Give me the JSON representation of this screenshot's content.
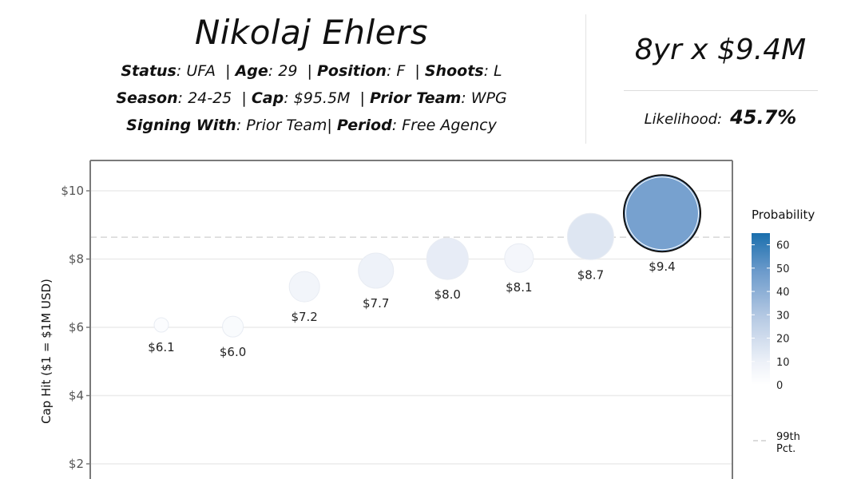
{
  "header": {
    "player_name": "Nikolaj Ehlers",
    "line1": [
      {
        "label": "Status",
        "value": "UFA"
      },
      {
        "label": "Age",
        "value": "29"
      },
      {
        "label": "Position",
        "value": "F"
      },
      {
        "label": "Shoots",
        "value": "L"
      }
    ],
    "line2": [
      {
        "label": "Season",
        "value": "24-25"
      },
      {
        "label": "Cap",
        "value": "$95.5M"
      },
      {
        "label": "Prior Team",
        "value": "WPG"
      }
    ],
    "line3": [
      {
        "label": "Signing With",
        "value": "Prior Team"
      },
      {
        "label": "Period",
        "value": "Free Agency"
      }
    ]
  },
  "summary": {
    "contract": "8yr x $9.4M",
    "likelihood_label": "Likelihood:",
    "likelihood_value": "45.7%"
  },
  "colors": {
    "scale_low": "#f7f9fc",
    "scale_high": "#1a6fad",
    "selected_outline": "#111111",
    "reference_line": "#d6d6d6",
    "gridline": "#ebebeb",
    "panel_border": "#7a7a7a"
  },
  "chart_data": {
    "type": "scatter",
    "title": "",
    "xlabel": "",
    "ylabel": "Cap Hit ($1 = $1M USD)",
    "y_ticks": [
      "$2",
      "$4",
      "$6",
      "$8",
      "$10"
    ],
    "y_tick_values": [
      2,
      4,
      6,
      8,
      10
    ],
    "ylim": [
      1.6,
      10.9
    ],
    "grid": true,
    "points": [
      {
        "label": "$6.1",
        "y": 6.07,
        "probability": 2,
        "radius": 9,
        "selected": false
      },
      {
        "label": "$6.0",
        "y": 6.02,
        "probability": 3,
        "radius": 13,
        "selected": false
      },
      {
        "label": "$7.2",
        "y": 7.19,
        "probability": 7,
        "radius": 19,
        "selected": false
      },
      {
        "label": "$7.7",
        "y": 7.66,
        "probability": 9,
        "radius": 22,
        "selected": false
      },
      {
        "label": "$8.0",
        "y": 8.01,
        "probability": 12,
        "radius": 26,
        "selected": false
      },
      {
        "label": "$8.1",
        "y": 8.03,
        "probability": 6,
        "radius": 18,
        "selected": false
      },
      {
        "label": "$8.7",
        "y": 8.66,
        "probability": 15,
        "radius": 29,
        "selected": false
      },
      {
        "label": "$9.4",
        "y": 9.34,
        "probability": 45.7,
        "radius": 48,
        "selected": true
      }
    ],
    "reference_line": {
      "name": "99th Pct.",
      "y": 8.64,
      "style": "dashed"
    },
    "legend": {
      "title": "Probability",
      "type": "colorbar",
      "ticks": [
        0,
        10,
        20,
        30,
        40,
        50,
        60
      ],
      "range": [
        0,
        65
      ],
      "position": "right",
      "reference_entry_line1": "99th",
      "reference_entry_line2": "Pct."
    }
  }
}
